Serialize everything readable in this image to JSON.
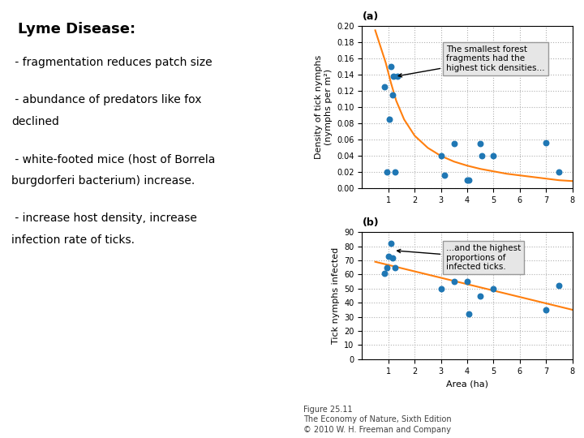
{
  "title": "Lyme Disease:",
  "notes": [
    [
      " - fragmentation reduces patch size"
    ],
    [
      " - abundance of predators like fox",
      "declined"
    ],
    [
      " - white-footed mice (host of Borrela",
      "burgdorferi bacterium) increase."
    ],
    [
      " - increase host density, increase",
      "infection rate of ticks."
    ]
  ],
  "caption": [
    "Figure 25.11",
    "The Economy of Nature, Sixth Edition",
    "© 2010 W. H. Freeman and Company"
  ],
  "chart_data": [
    {
      "type": "scatter",
      "title": "(a)",
      "y_label": "Density of tick nymphs\n(nymphs per m²)",
      "series": [
        {
          "type": "scatter",
          "x": [
            0.85,
            0.95,
            1.05,
            1.1,
            1.15,
            1.2,
            1.25,
            1.35,
            3.0,
            3.15,
            3.5,
            4.0,
            4.05,
            4.5,
            4.55,
            5.0,
            7.0,
            7.5
          ],
          "values": [
            0.125,
            0.02,
            0.085,
            0.15,
            0.115,
            0.138,
            0.02,
            0.138,
            0.04,
            0.016,
            0.055,
            0.01,
            0.01,
            0.055,
            0.04,
            0.04,
            0.056,
            0.02
          ]
        },
        {
          "type": "line",
          "x": [
            0.5,
            0.7,
            0.9,
            1.1,
            1.3,
            1.6,
            2.0,
            2.5,
            3.0,
            3.5,
            4.0,
            4.5,
            5.0,
            5.5,
            6.0,
            6.5,
            7.0,
            7.5,
            8.0
          ],
          "values": [
            0.195,
            0.175,
            0.155,
            0.13,
            0.108,
            0.085,
            0.065,
            0.05,
            0.04,
            0.033,
            0.028,
            0.024,
            0.021,
            0.018,
            0.016,
            0.014,
            0.012,
            0.01,
            0.009
          ]
        }
      ],
      "annotations": [
        {
          "text": "The smallest forest\nfragments had the\nhighest tick densities...",
          "x": 1.25,
          "y": 0.138
        }
      ],
      "xlim": [
        0,
        8
      ],
      "xticks": [
        1,
        2,
        3,
        4,
        5,
        6,
        7,
        8
      ],
      "ylim": [
        0.0,
        0.2
      ],
      "yticks": [
        {
          "value": 0.0,
          "label": "0.00"
        },
        {
          "value": 0.02,
          "label": "0.02"
        },
        {
          "value": 0.04,
          "label": "0.04"
        },
        {
          "value": 0.06,
          "label": "0.06"
        },
        {
          "value": 0.08,
          "label": "0.08"
        },
        {
          "value": 0.1,
          "label": "0.10"
        },
        {
          "value": 0.12,
          "label": "0.12"
        },
        {
          "value": 0.14,
          "label": "0.14"
        },
        {
          "value": 0.16,
          "label": "0.16"
        },
        {
          "value": 0.18,
          "label": "0.18"
        },
        {
          "value": 0.2,
          "label": "0.20"
        }
      ],
      "grid": true
    },
    {
      "type": "scatter",
      "title": "(b)",
      "y_label": "Tick nymphs infected",
      "x_label": "Area (ha)",
      "series": [
        {
          "type": "scatter",
          "x": [
            0.85,
            0.95,
            1.0,
            1.1,
            1.15,
            1.25,
            3.0,
            3.5,
            4.0,
            4.05,
            4.5,
            5.0,
            7.0,
            7.5
          ],
          "values": [
            61,
            65,
            73,
            82,
            72,
            65,
            50,
            55,
            55,
            32,
            45,
            50,
            35,
            52
          ]
        },
        {
          "type": "line",
          "x": [
            0.5,
            8.0
          ],
          "values": [
            69,
            35
          ]
        }
      ],
      "annotations": [
        {
          "text": "...and the highest\nproportions of\ninfected ticks.",
          "x": 1.2,
          "y": 77
        }
      ],
      "xlim": [
        0,
        8
      ],
      "xticks": [
        1,
        2,
        3,
        4,
        5,
        6,
        7,
        8
      ],
      "ylim": [
        0,
        90
      ],
      "yticks": [
        0,
        10,
        20,
        30,
        40,
        50,
        60,
        70,
        80,
        90
      ],
      "grid": true
    }
  ]
}
